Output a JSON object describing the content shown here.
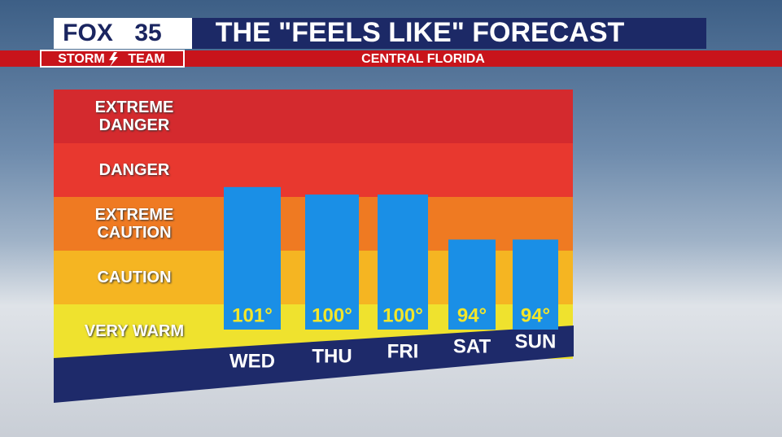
{
  "header": {
    "logo": "FOX",
    "channel": "35",
    "brand_left": "STORM",
    "brand_right": "TEAM"
  },
  "chart_data": {
    "type": "bar",
    "title": "THE \"FEELS LIKE\" FORECAST",
    "subtitle": "CENTRAL FLORIDA",
    "categories": [
      "WED",
      "THU",
      "FRI",
      "SAT",
      "SUN"
    ],
    "values": [
      101,
      100,
      100,
      94,
      94
    ],
    "value_labels": [
      "101°",
      "100°",
      "100°",
      "94°",
      "94°"
    ],
    "color": "#1a8fe6",
    "ylim": [
      82,
      114
    ],
    "bands": [
      {
        "label": "EXTREME DANGER",
        "color": "#d42a2e"
      },
      {
        "label": "DANGER",
        "color": "#e8382f"
      },
      {
        "label": "EXTREME CAUTION",
        "color": "#ef7a22"
      },
      {
        "label": "CAUTION",
        "color": "#f5b522"
      },
      {
        "label": "VERY WARM",
        "color": "#efe22e"
      }
    ]
  }
}
